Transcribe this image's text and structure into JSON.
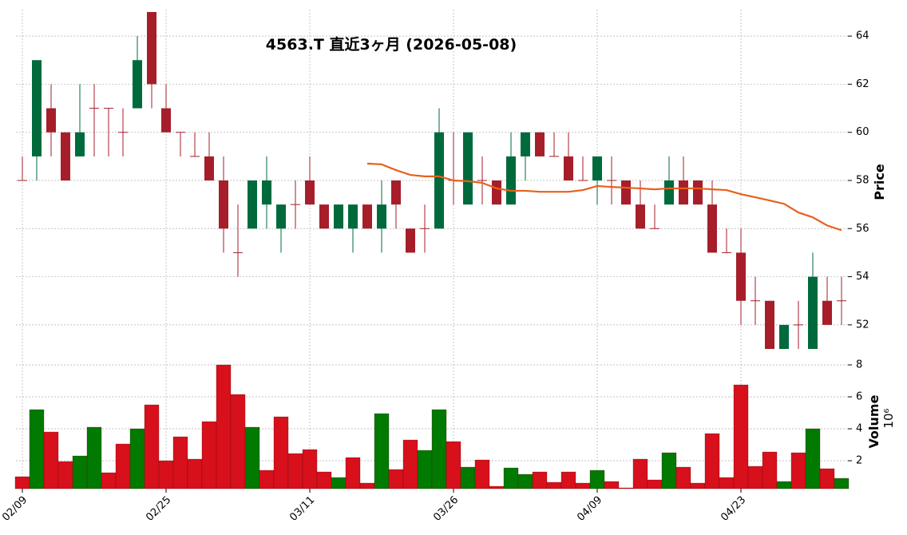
{
  "chart_data": [
    {
      "type": "candlestick",
      "title": "4563.T 直近3ヶ月 (2026-05-08)",
      "categories": [
        "02/09",
        null,
        null,
        null,
        null,
        null,
        null,
        null,
        null,
        null,
        "02/25",
        null,
        null,
        null,
        null,
        null,
        null,
        null,
        null,
        null,
        "03/11",
        null,
        null,
        null,
        null,
        null,
        null,
        null,
        null,
        null,
        "03/26",
        null,
        null,
        null,
        null,
        null,
        null,
        null,
        null,
        null,
        "04/09",
        null,
        null,
        null,
        null,
        null,
        null,
        null,
        null,
        null,
        "04/23",
        null,
        null,
        null,
        null,
        null,
        null,
        null
      ],
      "open": [
        58,
        59,
        61,
        60,
        59,
        61,
        61,
        60,
        61,
        65,
        61,
        60,
        59,
        59,
        58,
        55,
        56,
        57,
        56,
        57,
        58,
        57,
        56,
        56,
        57,
        56,
        58,
        56,
        56,
        56,
        58,
        57,
        58,
        58,
        57,
        59,
        60,
        59,
        59,
        58,
        58,
        58,
        58,
        57,
        56,
        57,
        58,
        58,
        57,
        55,
        55,
        53,
        53,
        51,
        52,
        51,
        53,
        53
      ],
      "high": [
        59,
        63,
        62,
        60,
        62,
        62,
        61,
        61,
        64,
        65,
        62,
        60,
        60,
        60,
        59,
        57,
        58,
        59,
        57,
        58,
        59,
        57,
        57,
        57,
        57,
        58,
        58,
        56,
        57,
        61,
        60,
        60,
        59,
        58,
        60,
        60,
        60,
        60,
        60,
        59,
        59,
        59,
        58,
        58,
        57,
        59,
        59,
        58,
        58,
        56,
        56,
        54,
        53,
        52,
        53,
        55,
        54,
        54
      ],
      "low": [
        58,
        58,
        59,
        58,
        59,
        59,
        59,
        59,
        61,
        61,
        60,
        59,
        59,
        58,
        55,
        54,
        56,
        56,
        55,
        56,
        57,
        56,
        56,
        55,
        56,
        55,
        56,
        55,
        55,
        56,
        57,
        57,
        57,
        57,
        57,
        58,
        59,
        59,
        58,
        58,
        57,
        57,
        57,
        56,
        56,
        57,
        57,
        57,
        55,
        55,
        52,
        52,
        51,
        51,
        51,
        51,
        52,
        52
      ],
      "close": [
        58,
        63,
        60,
        58,
        60,
        61,
        61,
        60,
        63,
        62,
        60,
        60,
        59,
        58,
        56,
        55,
        58,
        58,
        57,
        57,
        57,
        56,
        57,
        57,
        56,
        57,
        57,
        55,
        56,
        60,
        58,
        60,
        58,
        57,
        59,
        60,
        59,
        59,
        58,
        58,
        59,
        58,
        57,
        56,
        56,
        58,
        57,
        57,
        55,
        55,
        53,
        53,
        51,
        52,
        52,
        54,
        52,
        53
      ],
      "up_color": "#006a3c",
      "down_color": "#a61e2a",
      "series": [
        {
          "color": "#e8601c",
          "values": [
            null,
            null,
            null,
            null,
            null,
            null,
            null,
            null,
            null,
            null,
            null,
            null,
            null,
            null,
            null,
            null,
            null,
            null,
            null,
            null,
            null,
            null,
            null,
            null,
            58.7,
            58.67,
            58.43,
            58.23,
            58.17,
            58.17,
            58.0,
            57.97,
            57.9,
            57.67,
            57.57,
            57.57,
            57.53,
            57.53,
            57.53,
            57.6,
            57.77,
            57.73,
            57.7,
            57.67,
            57.63,
            57.67,
            57.67,
            57.67,
            57.63,
            57.6,
            57.43,
            57.3,
            57.17,
            57.03,
            56.67,
            56.47,
            56.13,
            55.93
          ]
        }
      ],
      "ylabel": "Price",
      "ylim": [
        50.9,
        65.1
      ],
      "yticks": [
        52,
        54,
        56,
        58,
        60,
        62,
        64
      ],
      "grid": true
    },
    {
      "type": "bar",
      "ylabel": "Volume",
      "scale_label": "10⁶",
      "values": [
        1.0,
        5.2,
        3.8,
        1.95,
        2.3,
        4.1,
        1.25,
        3.05,
        4.0,
        5.5,
        2.0,
        3.5,
        2.1,
        4.45,
        8.0,
        6.15,
        4.1,
        1.4,
        4.75,
        2.45,
        2.7,
        1.3,
        0.95,
        2.2,
        0.6,
        4.95,
        1.45,
        3.3,
        2.65,
        5.2,
        3.2,
        1.6,
        2.05,
        0.4,
        1.55,
        1.15,
        1.3,
        0.65,
        1.3,
        0.6,
        1.4,
        0.7,
        0.3,
        2.1,
        0.8,
        2.5,
        1.6,
        0.6,
        3.7,
        0.95,
        6.75,
        1.65,
        2.55,
        0.7,
        2.5,
        4.0,
        1.5,
        0.9
      ],
      "colors": [
        "#d7101c",
        "#007a00",
        "#d7101c",
        "#d7101c",
        "#007a00",
        "#007a00",
        "#d7101c",
        "#d7101c",
        "#007a00",
        "#d7101c",
        "#d7101c",
        "#d7101c",
        "#d7101c",
        "#d7101c",
        "#d7101c",
        "#d7101c",
        "#007a00",
        "#d7101c",
        "#d7101c",
        "#d7101c",
        "#d7101c",
        "#d7101c",
        "#007a00",
        "#d7101c",
        "#d7101c",
        "#007a00",
        "#d7101c",
        "#d7101c",
        "#007a00",
        "#007a00",
        "#d7101c",
        "#007a00",
        "#d7101c",
        "#d7101c",
        "#007a00",
        "#007a00",
        "#d7101c",
        "#d7101c",
        "#d7101c",
        "#d7101c",
        "#007a00",
        "#d7101c",
        "#d7101c",
        "#d7101c",
        "#d7101c",
        "#007a00",
        "#d7101c",
        "#d7101c",
        "#d7101c",
        "#d7101c",
        "#d7101c",
        "#d7101c",
        "#d7101c",
        "#007a00",
        "#d7101c",
        "#007a00",
        "#d7101c",
        "#007a00"
      ],
      "ylim": [
        0.25,
        8.85
      ],
      "yticks": [
        2,
        4,
        6,
        8
      ],
      "grid": true
    }
  ]
}
